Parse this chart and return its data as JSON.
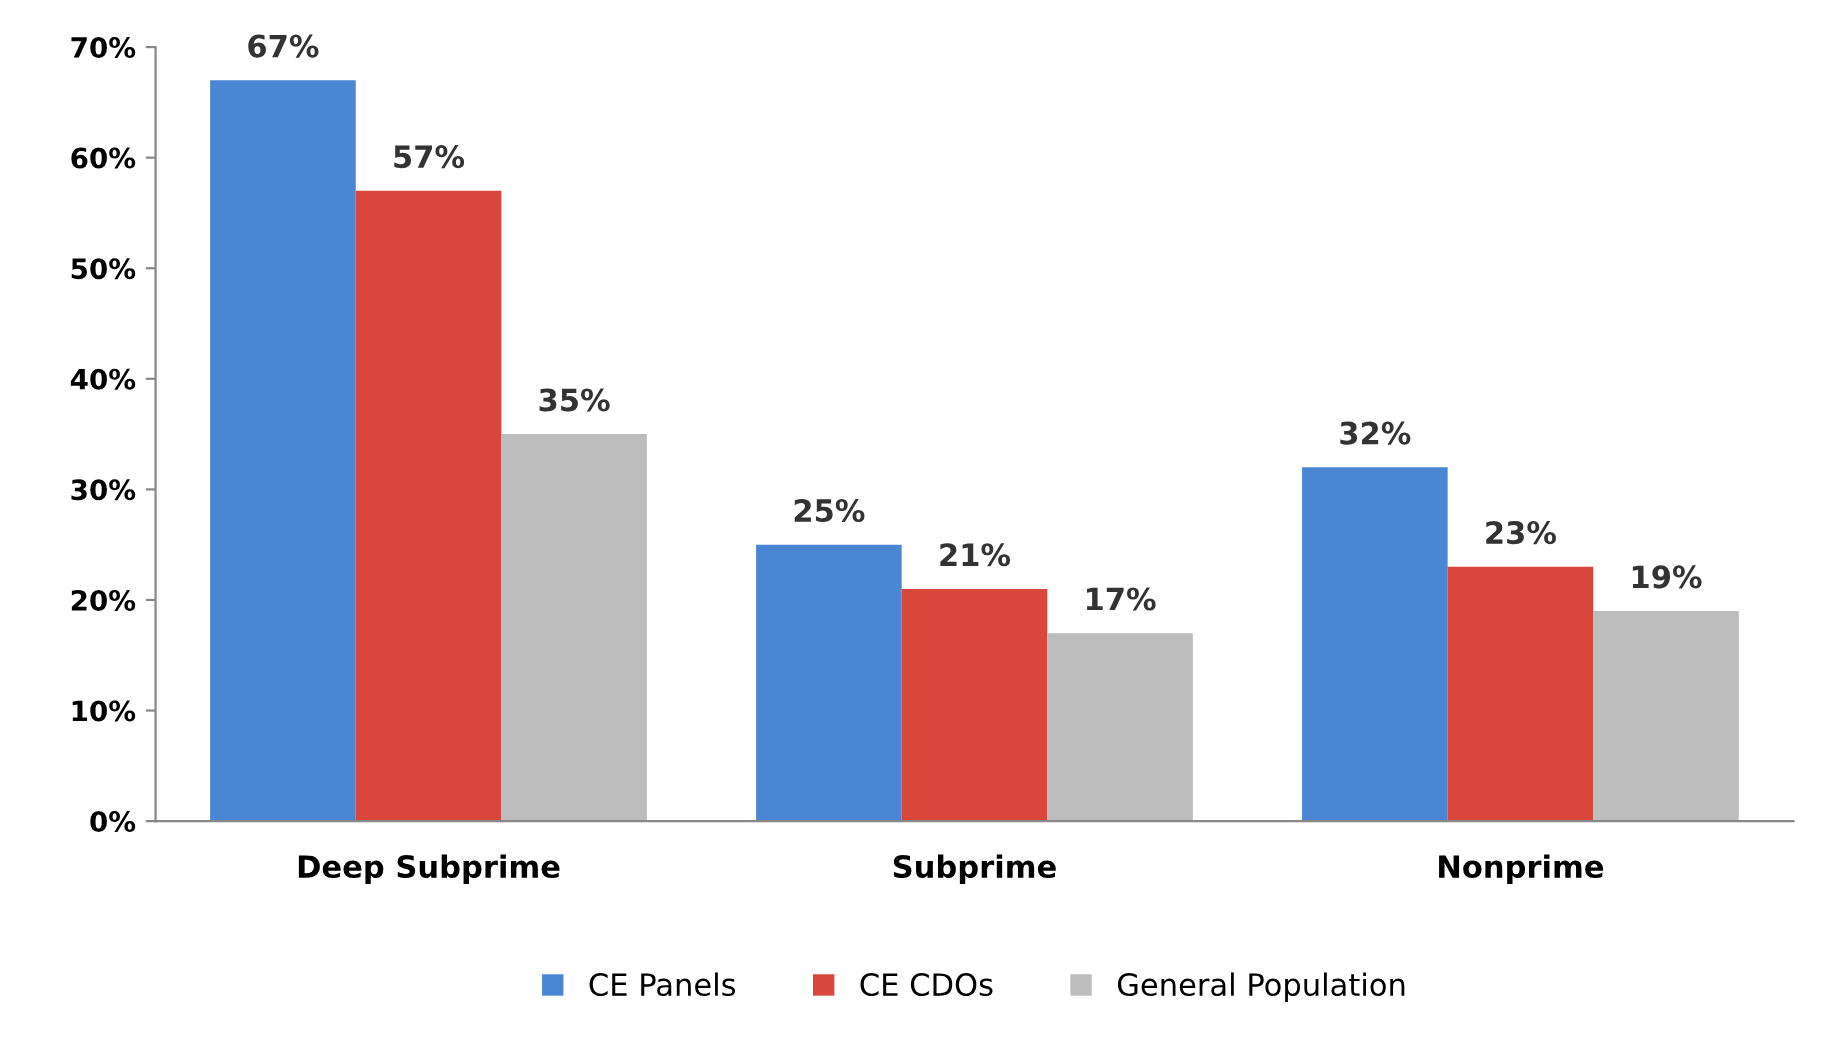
{
  "chart_data": {
    "type": "bar",
    "categories": [
      "Deep Subprime",
      "Subprime",
      "Nonprime"
    ],
    "series": [
      {
        "name": "CE Panels",
        "color": "#4a86d4",
        "values": [
          67,
          25,
          32
        ],
        "value_labels": [
          "67%",
          "25%",
          "32%"
        ]
      },
      {
        "name": "CE CDOs",
        "color": "#d9463c",
        "values": [
          57,
          21,
          23
        ],
        "value_labels": [
          "57%",
          "21%",
          "23%"
        ]
      },
      {
        "name": "General Population",
        "color": "#bdbdbd",
        "values": [
          35,
          17,
          19
        ],
        "value_labels": [
          "35%",
          "17%",
          "19%"
        ]
      }
    ],
    "ylim": [
      0,
      70
    ],
    "yticks": [
      {
        "value": 0,
        "label": "0%"
      },
      {
        "value": 10,
        "label": "10%"
      },
      {
        "value": 20,
        "label": "20%"
      },
      {
        "value": 30,
        "label": "30%"
      },
      {
        "value": 40,
        "label": "40%"
      },
      {
        "value": 50,
        "label": "50%"
      },
      {
        "value": 60,
        "label": "60%"
      },
      {
        "value": 70,
        "label": "70%"
      }
    ],
    "grid": false,
    "legend": "bottom"
  }
}
